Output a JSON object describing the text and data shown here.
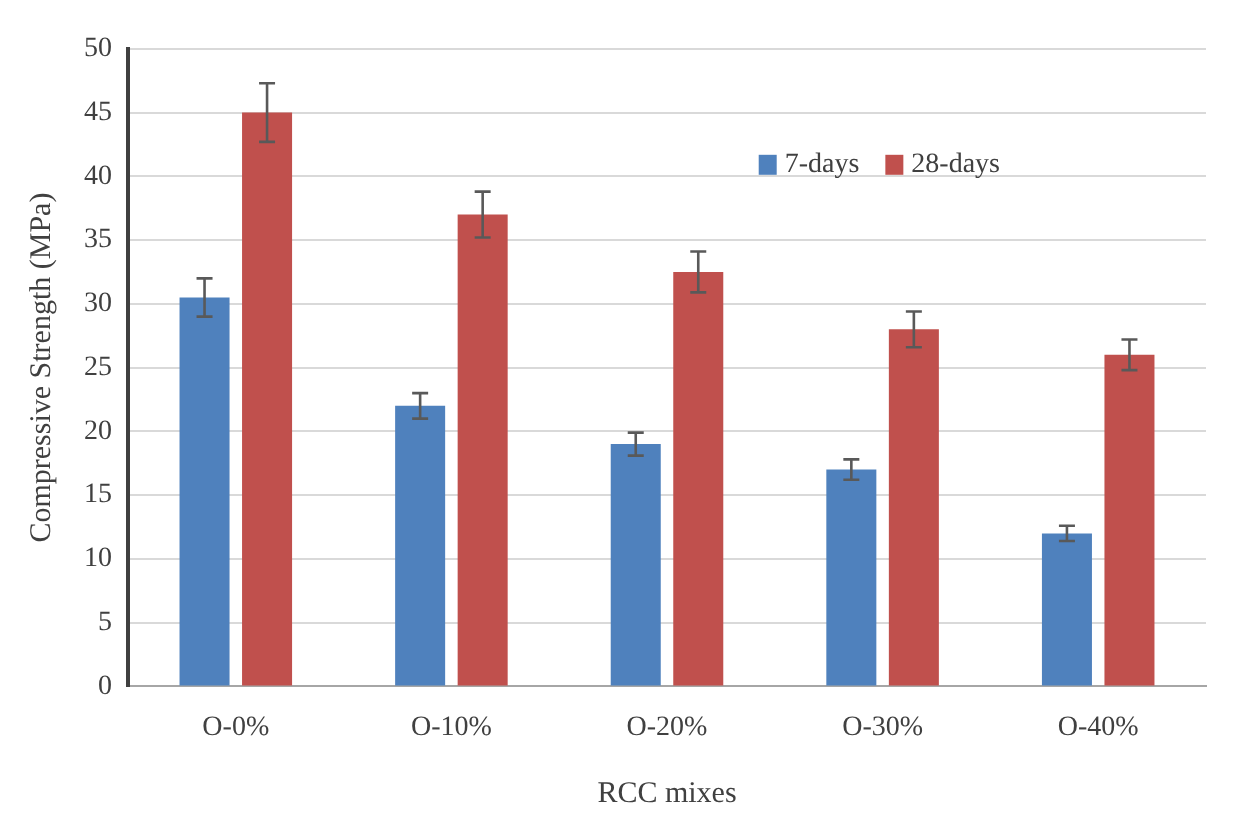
{
  "chart_data": {
    "type": "bar",
    "xlabel": "RCC mixes",
    "ylabel": "Compressive Strength (MPa)",
    "categories": [
      "O-0%",
      "O-10%",
      "O-20%",
      "O-30%",
      "O-40%"
    ],
    "series": [
      {
        "name": "7-days",
        "color": "#4f81bd",
        "values": [
          30.5,
          22,
          19,
          17,
          12
        ],
        "errors": [
          1.5,
          1,
          0.9,
          0.8,
          0.6
        ]
      },
      {
        "name": "28-days",
        "color": "#c0504d",
        "values": [
          45,
          37,
          32.5,
          28,
          26
        ],
        "errors": [
          2.3,
          1.8,
          1.6,
          1.4,
          1.2
        ]
      }
    ],
    "ylim": [
      0,
      50
    ],
    "yticks": [
      0,
      5,
      10,
      15,
      20,
      25,
      30,
      35,
      40,
      45,
      50
    ],
    "grid": "y",
    "legend": "top right"
  }
}
